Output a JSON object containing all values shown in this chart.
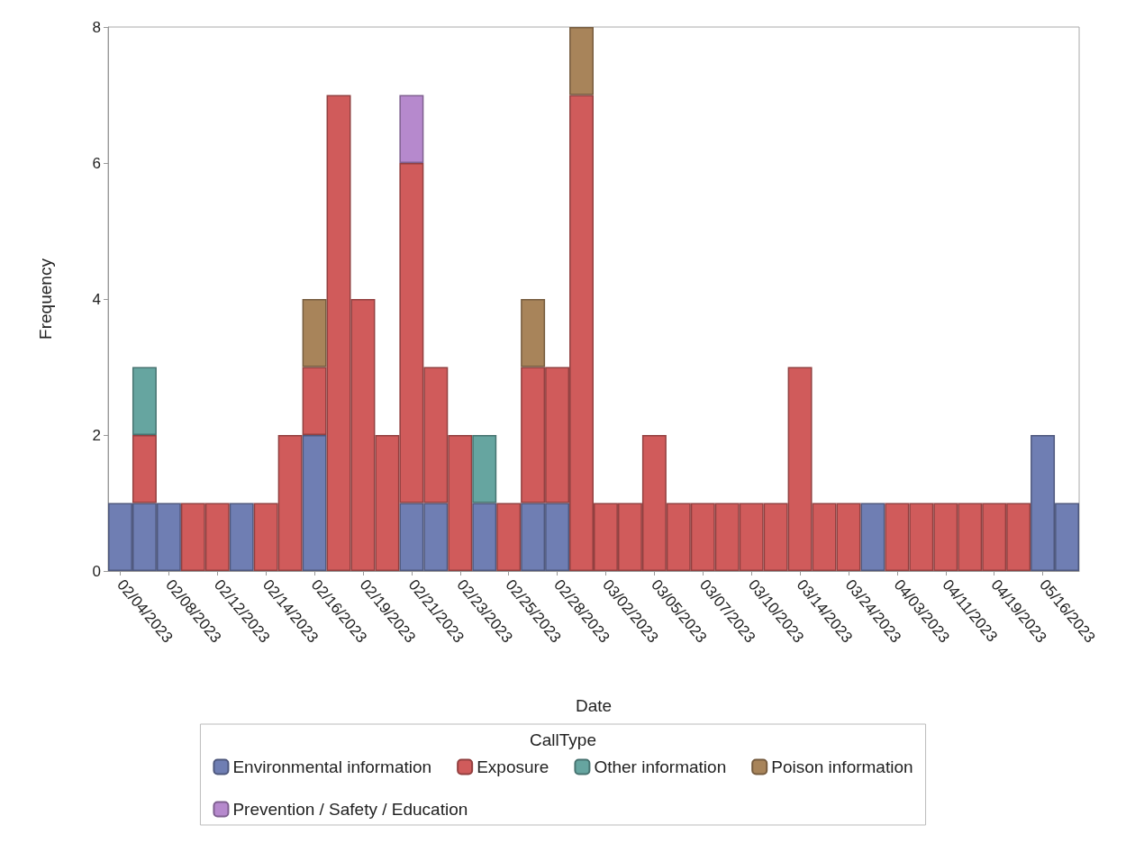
{
  "chart_data": {
    "type": "bar",
    "stacked": true,
    "xlabel": "Date",
    "ylabel": "Frequency",
    "legend_title": "CallType",
    "legend": "bottom",
    "grid": false,
    "categories": [
      "02/04/2023",
      null,
      "02/08/2023",
      null,
      "02/12/2023",
      null,
      "02/14/2023",
      null,
      "02/16/2023",
      null,
      "02/19/2023",
      null,
      "02/21/2023",
      null,
      "02/23/2023",
      null,
      "02/25/2023",
      null,
      "02/28/2023",
      null,
      "03/02/2023",
      null,
      "03/05/2023",
      null,
      "03/07/2023",
      null,
      "03/10/2023",
      null,
      "03/14/2023",
      null,
      "03/24/2023",
      null,
      "04/03/2023",
      null,
      "04/11/2023",
      null,
      "04/19/2023",
      null,
      "05/16/2023",
      null
    ],
    "ylim": [
      0,
      8
    ],
    "yticks": [
      0,
      2,
      4,
      6,
      8
    ],
    "series": [
      {
        "name": "Environmental information",
        "color": "#6f7eb3",
        "values": [
          1,
          1,
          1,
          null,
          null,
          1,
          null,
          null,
          2,
          null,
          null,
          null,
          1,
          1,
          null,
          1,
          null,
          1,
          1,
          null,
          null,
          null,
          null,
          null,
          null,
          null,
          null,
          null,
          null,
          null,
          null,
          1,
          null,
          null,
          null,
          null,
          null,
          null,
          2,
          1
        ]
      },
      {
        "name": "Exposure",
        "color": "#d05b5b",
        "values": [
          null,
          1,
          null,
          1,
          1,
          null,
          1,
          2,
          1,
          7,
          4,
          2,
          5,
          2,
          2,
          null,
          1,
          2,
          2,
          7,
          1,
          1,
          2,
          1,
          1,
          1,
          1,
          1,
          3,
          1,
          1,
          null,
          1,
          1,
          1,
          1,
          1,
          1,
          null,
          null
        ]
      },
      {
        "name": "Other information",
        "color": "#66a5a0",
        "values": [
          null,
          1,
          null,
          null,
          null,
          null,
          null,
          null,
          null,
          null,
          null,
          null,
          null,
          null,
          null,
          1,
          null,
          null,
          null,
          null,
          null,
          null,
          null,
          null,
          null,
          null,
          null,
          null,
          null,
          null,
          null,
          null,
          null,
          null,
          null,
          null,
          null,
          null,
          null,
          null
        ]
      },
      {
        "name": "Poison information",
        "color": "#a8845a",
        "values": [
          null,
          null,
          null,
          null,
          null,
          null,
          null,
          null,
          1,
          null,
          null,
          null,
          null,
          null,
          null,
          null,
          null,
          1,
          null,
          1,
          null,
          null,
          null,
          null,
          null,
          null,
          null,
          null,
          null,
          null,
          null,
          null,
          null,
          null,
          null,
          null,
          null,
          null,
          null,
          null
        ]
      },
      {
        "name": "Prevention / Safety / Education",
        "color": "#b689cd",
        "values": [
          null,
          null,
          null,
          null,
          null,
          null,
          null,
          null,
          null,
          null,
          null,
          null,
          1,
          null,
          null,
          null,
          null,
          null,
          null,
          null,
          null,
          null,
          null,
          null,
          null,
          null,
          null,
          null,
          null,
          null,
          null,
          null,
          null,
          null,
          null,
          null,
          null,
          null,
          null,
          null
        ]
      }
    ]
  }
}
